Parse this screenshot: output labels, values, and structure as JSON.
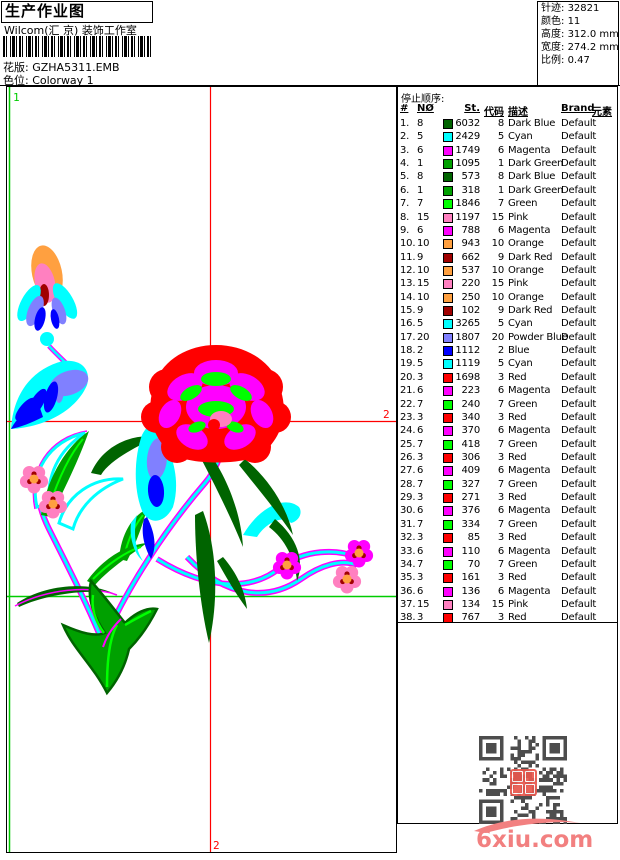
{
  "header": {
    "title": "生产作业图",
    "company": "Wilcom(汇 京) 装饰工作室",
    "pattern_label": "花版:",
    "pattern_value": "GZHA5311.EMB",
    "colorway_label": "色位:",
    "colorway_value": "Colorway 1",
    "stats": [
      {
        "label": "针迹:",
        "value": "32821"
      },
      {
        "label": "颜色:",
        "value": "11"
      },
      {
        "label": "高度:",
        "value": "312.0 mm"
      },
      {
        "label": "宽度:",
        "value": "274.2 mm"
      },
      {
        "label": "比例:",
        "value": "0.47"
      }
    ]
  },
  "design": {
    "labels": {
      "start_point": "1",
      "hline_end": "2",
      "vline_end": "2"
    },
    "guide_colors": {
      "red": "#FF0000",
      "green": "#00CC00"
    }
  },
  "stop_sequence": {
    "title": "停止顺序:",
    "columns": [
      "#",
      "NØ",
      "St.",
      "代码",
      "描述",
      "Brand",
      "元素"
    ],
    "rows": [
      {
        "idx": "1.",
        "no": "8",
        "color": "#006400",
        "st": "6032",
        "code": "8",
        "desc": "Dark Blue",
        "brand": "Default"
      },
      {
        "idx": "2.",
        "no": "5",
        "color": "#00FFFF",
        "st": "2429",
        "code": "5",
        "desc": "Cyan",
        "brand": "Default"
      },
      {
        "idx": "3.",
        "no": "6",
        "color": "#FF00FF",
        "st": "1749",
        "code": "6",
        "desc": "Magenta",
        "brand": "Default"
      },
      {
        "idx": "4.",
        "no": "1",
        "color": "#00A000",
        "st": "1095",
        "code": "1",
        "desc": "Dark Green",
        "brand": "Default"
      },
      {
        "idx": "5.",
        "no": "8",
        "color": "#006400",
        "st": "573",
        "code": "8",
        "desc": "Dark Blue",
        "brand": "Default"
      },
      {
        "idx": "6.",
        "no": "1",
        "color": "#00A000",
        "st": "318",
        "code": "1",
        "desc": "Dark Green",
        "brand": "Default"
      },
      {
        "idx": "7.",
        "no": "7",
        "color": "#00FF00",
        "st": "1846",
        "code": "7",
        "desc": "Green",
        "brand": "Default"
      },
      {
        "idx": "8.",
        "no": "15",
        "color": "#FF80C0",
        "st": "1197",
        "code": "15",
        "desc": "Pink",
        "brand": "Default"
      },
      {
        "idx": "9.",
        "no": "6",
        "color": "#FF00FF",
        "st": "788",
        "code": "6",
        "desc": "Magenta",
        "brand": "Default"
      },
      {
        "idx": "10.",
        "no": "10",
        "color": "#FFA040",
        "st": "943",
        "code": "10",
        "desc": "Orange",
        "brand": "Default"
      },
      {
        "idx": "11.",
        "no": "9",
        "color": "#A00000",
        "st": "662",
        "code": "9",
        "desc": "Dark Red",
        "brand": "Default"
      },
      {
        "idx": "12.",
        "no": "10",
        "color": "#FFA040",
        "st": "537",
        "code": "10",
        "desc": "Orange",
        "brand": "Default"
      },
      {
        "idx": "13.",
        "no": "15",
        "color": "#FF80C0",
        "st": "220",
        "code": "15",
        "desc": "Pink",
        "brand": "Default"
      },
      {
        "idx": "14.",
        "no": "10",
        "color": "#FFA040",
        "st": "250",
        "code": "10",
        "desc": "Orange",
        "brand": "Default"
      },
      {
        "idx": "15.",
        "no": "9",
        "color": "#A00000",
        "st": "102",
        "code": "9",
        "desc": "Dark Red",
        "brand": "Default"
      },
      {
        "idx": "16.",
        "no": "5",
        "color": "#00FFFF",
        "st": "3265",
        "code": "5",
        "desc": "Cyan",
        "brand": "Default"
      },
      {
        "idx": "17.",
        "no": "20",
        "color": "#8080FF",
        "st": "1807",
        "code": "20",
        "desc": "Powder Blue",
        "brand": "Default"
      },
      {
        "idx": "18.",
        "no": "2",
        "color": "#0000FF",
        "st": "1112",
        "code": "2",
        "desc": "Blue",
        "brand": "Default"
      },
      {
        "idx": "19.",
        "no": "5",
        "color": "#00FFFF",
        "st": "1119",
        "code": "5",
        "desc": "Cyan",
        "brand": "Default"
      },
      {
        "idx": "20.",
        "no": "3",
        "color": "#FF0000",
        "st": "1698",
        "code": "3",
        "desc": "Red",
        "brand": "Default"
      },
      {
        "idx": "21.",
        "no": "6",
        "color": "#FF00FF",
        "st": "223",
        "code": "6",
        "desc": "Magenta",
        "brand": "Default"
      },
      {
        "idx": "22.",
        "no": "7",
        "color": "#00FF00",
        "st": "240",
        "code": "7",
        "desc": "Green",
        "brand": "Default"
      },
      {
        "idx": "23.",
        "no": "3",
        "color": "#FF0000",
        "st": "340",
        "code": "3",
        "desc": "Red",
        "brand": "Default"
      },
      {
        "idx": "24.",
        "no": "6",
        "color": "#FF00FF",
        "st": "370",
        "code": "6",
        "desc": "Magenta",
        "brand": "Default"
      },
      {
        "idx": "25.",
        "no": "7",
        "color": "#00FF00",
        "st": "418",
        "code": "7",
        "desc": "Green",
        "brand": "Default"
      },
      {
        "idx": "26.",
        "no": "3",
        "color": "#FF0000",
        "st": "306",
        "code": "3",
        "desc": "Red",
        "brand": "Default"
      },
      {
        "idx": "27.",
        "no": "6",
        "color": "#FF00FF",
        "st": "409",
        "code": "6",
        "desc": "Magenta",
        "brand": "Default"
      },
      {
        "idx": "28.",
        "no": "7",
        "color": "#00FF00",
        "st": "327",
        "code": "7",
        "desc": "Green",
        "brand": "Default"
      },
      {
        "idx": "29.",
        "no": "3",
        "color": "#FF0000",
        "st": "271",
        "code": "3",
        "desc": "Red",
        "brand": "Default"
      },
      {
        "idx": "30.",
        "no": "6",
        "color": "#FF00FF",
        "st": "376",
        "code": "6",
        "desc": "Magenta",
        "brand": "Default"
      },
      {
        "idx": "31.",
        "no": "7",
        "color": "#00FF00",
        "st": "334",
        "code": "7",
        "desc": "Green",
        "brand": "Default"
      },
      {
        "idx": "32.",
        "no": "3",
        "color": "#FF0000",
        "st": "85",
        "code": "3",
        "desc": "Red",
        "brand": "Default"
      },
      {
        "idx": "33.",
        "no": "6",
        "color": "#FF00FF",
        "st": "110",
        "code": "6",
        "desc": "Magenta",
        "brand": "Default"
      },
      {
        "idx": "34.",
        "no": "7",
        "color": "#00FF00",
        "st": "70",
        "code": "7",
        "desc": "Green",
        "brand": "Default"
      },
      {
        "idx": "35.",
        "no": "3",
        "color": "#FF0000",
        "st": "161",
        "code": "3",
        "desc": "Red",
        "brand": "Default"
      },
      {
        "idx": "36.",
        "no": "6",
        "color": "#FF00FF",
        "st": "136",
        "code": "6",
        "desc": "Magenta",
        "brand": "Default"
      },
      {
        "idx": "37.",
        "no": "15",
        "color": "#FF80C0",
        "st": "134",
        "code": "15",
        "desc": "Pink",
        "brand": "Default"
      },
      {
        "idx": "38.",
        "no": "3",
        "color": "#FF0000",
        "st": "767",
        "code": "3",
        "desc": "Red",
        "brand": "Default"
      }
    ]
  },
  "footer": {
    "watermark": "6xiu.com"
  }
}
